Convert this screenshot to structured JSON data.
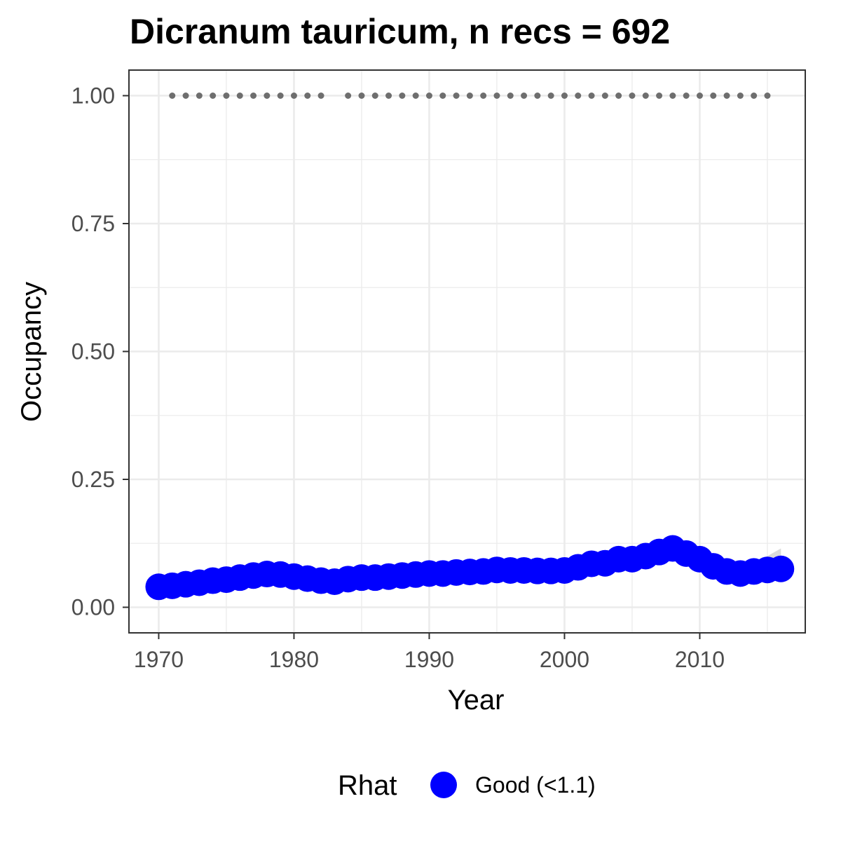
{
  "chart_data": {
    "type": "line",
    "title": "Dicranum tauricum, n recs = 692",
    "xlabel": "Year",
    "ylabel": "Occupancy",
    "xlim": [
      1967.8,
      2017.8
    ],
    "ylim": [
      -0.05,
      1.05
    ],
    "x_ticks": [
      1970,
      1980,
      1990,
      2000,
      2010
    ],
    "x_tick_labels": [
      "1970",
      "1980",
      "1990",
      "2000",
      "2010"
    ],
    "y_ticks": [
      0,
      0.25,
      0.5,
      0.75,
      1.0
    ],
    "y_tick_labels": [
      "0.00",
      "0.25",
      "0.50",
      "0.75",
      "1.00"
    ],
    "grid": true,
    "legend_position": "bottom",
    "legend": {
      "title": "Rhat",
      "entries": [
        {
          "label": "Good (<1.1)",
          "color": "#0000ff"
        }
      ]
    },
    "colors": {
      "points": "#0000ff",
      "ribbon": "#d3d3d3",
      "record_dots": "#6e6e6e",
      "grid": "#ebebeb",
      "panel_border": "#333333"
    },
    "series": [
      {
        "name": "Good (<1.1)",
        "x": [
          1970,
          1971,
          1972,
          1973,
          1974,
          1975,
          1976,
          1977,
          1978,
          1979,
          1980,
          1981,
          1982,
          1983,
          1984,
          1985,
          1986,
          1987,
          1988,
          1989,
          1990,
          1991,
          1992,
          1993,
          1994,
          1995,
          1996,
          1997,
          1998,
          1999,
          2000,
          2001,
          2002,
          2003,
          2004,
          2005,
          2006,
          2007,
          2008,
          2009,
          2010,
          2011,
          2012,
          2013,
          2014,
          2015,
          2016
        ],
        "y": [
          0.04,
          0.042,
          0.045,
          0.048,
          0.052,
          0.054,
          0.058,
          0.062,
          0.065,
          0.064,
          0.06,
          0.056,
          0.052,
          0.05,
          0.055,
          0.058,
          0.058,
          0.06,
          0.062,
          0.064,
          0.066,
          0.066,
          0.068,
          0.069,
          0.07,
          0.073,
          0.072,
          0.072,
          0.071,
          0.071,
          0.072,
          0.078,
          0.085,
          0.086,
          0.094,
          0.094,
          0.1,
          0.108,
          0.115,
          0.105,
          0.094,
          0.08,
          0.07,
          0.066,
          0.07,
          0.073,
          0.075
        ],
        "lower": [
          0.03,
          0.032,
          0.034,
          0.037,
          0.04,
          0.042,
          0.045,
          0.048,
          0.05,
          0.05,
          0.047,
          0.044,
          0.041,
          0.039,
          0.043,
          0.046,
          0.046,
          0.048,
          0.05,
          0.052,
          0.054,
          0.054,
          0.056,
          0.057,
          0.058,
          0.06,
          0.059,
          0.059,
          0.058,
          0.058,
          0.059,
          0.064,
          0.07,
          0.071,
          0.078,
          0.078,
          0.083,
          0.089,
          0.094,
          0.085,
          0.076,
          0.064,
          0.055,
          0.051,
          0.054,
          0.056,
          0.056
        ],
        "upper": [
          0.052,
          0.055,
          0.058,
          0.061,
          0.066,
          0.069,
          0.074,
          0.079,
          0.083,
          0.081,
          0.076,
          0.071,
          0.066,
          0.064,
          0.069,
          0.072,
          0.072,
          0.074,
          0.076,
          0.078,
          0.08,
          0.08,
          0.082,
          0.084,
          0.085,
          0.089,
          0.088,
          0.088,
          0.087,
          0.087,
          0.088,
          0.095,
          0.103,
          0.104,
          0.113,
          0.114,
          0.121,
          0.131,
          0.14,
          0.128,
          0.115,
          0.099,
          0.087,
          0.084,
          0.091,
          0.1,
          0.115
        ]
      }
    ],
    "records": {
      "y": 1.0,
      "x": [
        1971,
        1972,
        1973,
        1974,
        1975,
        1976,
        1977,
        1978,
        1979,
        1980,
        1981,
        1982,
        1984,
        1985,
        1986,
        1987,
        1988,
        1989,
        1990,
        1991,
        1992,
        1993,
        1994,
        1995,
        1996,
        1997,
        1998,
        1999,
        2000,
        2001,
        2002,
        2003,
        2004,
        2005,
        2006,
        2007,
        2008,
        2009,
        2010,
        2011,
        2012,
        2013,
        2014,
        2015
      ]
    }
  }
}
